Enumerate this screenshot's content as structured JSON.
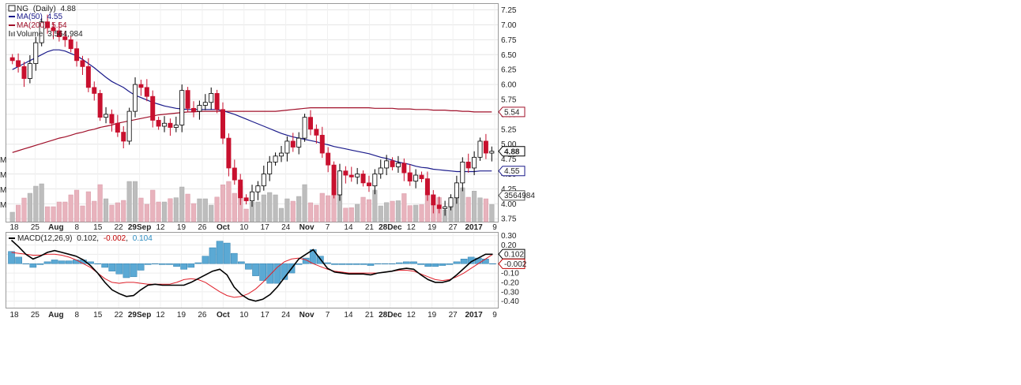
{
  "chart_data": [
    {
      "type": "candlestick",
      "legend": {
        "symbol": "NG",
        "period": "(Daily)",
        "last": "4.88",
        "ma50_label": "MA(50)",
        "ma50_value": "4.55",
        "ma200_label": "MA(200)",
        "ma200_value": "5.54",
        "volume_label": "Volume",
        "volume_value": "3,564,984"
      },
      "y_ticks": [
        "7.25",
        "7.00",
        "6.75",
        "6.50",
        "6.25",
        "6.00",
        "5.75",
        "5.50",
        "5.25",
        "5.00",
        "4.75",
        "4.50",
        "4.25",
        "4.00",
        "3.75"
      ],
      "ylim": [
        3.7,
        7.35
      ],
      "price_tags": [
        {
          "text": "5.54",
          "value": 5.54,
          "color": "#a0102a",
          "bold": false
        },
        {
          "text": "4.88",
          "value": 4.88,
          "color": "#000000",
          "bold": true
        },
        {
          "text": "4.55",
          "value": 4.55,
          "color": "#1a1a8a",
          "bold": false
        }
      ],
      "volume_tag": "3564984",
      "left_axis_labels": [
        "M",
        "M",
        "M",
        "M"
      ],
      "x_labels": [
        {
          "text": "18",
          "bold": false
        },
        {
          "text": "25",
          "bold": false
        },
        {
          "text": "Aug",
          "bold": true
        },
        {
          "text": "8",
          "bold": false
        },
        {
          "text": "15",
          "bold": false
        },
        {
          "text": "22",
          "bold": false
        },
        {
          "text": "29Sep",
          "bold": true
        },
        {
          "text": "12",
          "bold": false
        },
        {
          "text": "19",
          "bold": false
        },
        {
          "text": "26",
          "bold": false
        },
        {
          "text": "Oct",
          "bold": true
        },
        {
          "text": "10",
          "bold": false
        },
        {
          "text": "17",
          "bold": false
        },
        {
          "text": "24",
          "bold": false
        },
        {
          "text": "Nov",
          "bold": true
        },
        {
          "text": "7",
          "bold": false
        },
        {
          "text": "14",
          "bold": false
        },
        {
          "text": "21",
          "bold": false
        },
        {
          "text": "28Dec",
          "bold": true
        },
        {
          "text": "12",
          "bold": false
        },
        {
          "text": "19",
          "bold": false
        },
        {
          "text": "27",
          "bold": false
        },
        {
          "text": "2017",
          "bold": true
        },
        {
          "text": "9",
          "bold": false
        }
      ],
      "closes": [
        6.4,
        6.3,
        6.1,
        6.35,
        6.7,
        7.05,
        6.95,
        6.9,
        6.8,
        6.75,
        6.6,
        6.4,
        6.3,
        5.95,
        5.85,
        5.45,
        5.5,
        5.35,
        5.2,
        5.05,
        5.55,
        6.0,
        5.95,
        5.8,
        5.4,
        5.3,
        5.35,
        5.28,
        5.32,
        5.9,
        5.6,
        5.55,
        5.65,
        5.7,
        5.85,
        5.58,
        5.1,
        4.6,
        4.4,
        4.1,
        4.05,
        4.2,
        4.3,
        4.5,
        4.7,
        4.8,
        4.85,
        5.05,
        4.95,
        5.1,
        5.45,
        5.25,
        5.15,
        4.85,
        4.65,
        4.15,
        4.55,
        4.48,
        4.45,
        4.5,
        4.35,
        4.3,
        4.5,
        4.6,
        4.72,
        4.62,
        4.68,
        4.52,
        4.38,
        4.48,
        4.42,
        4.15,
        3.98,
        3.92,
        3.95,
        4.1,
        4.35,
        4.7,
        4.6,
        4.78,
        5.05,
        4.85,
        4.88
      ],
      "ma50": [
        6.25,
        6.3,
        6.35,
        6.4,
        6.45,
        6.5,
        6.55,
        6.58,
        6.58,
        6.56,
        6.52,
        6.48,
        6.42,
        6.35,
        6.28,
        6.2,
        6.12,
        6.05,
        6.0,
        5.95,
        5.88,
        5.82,
        5.78,
        5.74,
        5.7,
        5.67,
        5.64,
        5.62,
        5.6,
        5.59,
        5.58,
        5.58,
        5.58,
        5.58,
        5.58,
        5.58,
        5.56,
        5.53,
        5.5,
        5.46,
        5.42,
        5.38,
        5.34,
        5.3,
        5.26,
        5.22,
        5.18,
        5.15,
        5.12,
        5.1,
        5.08,
        5.06,
        5.04,
        5.01,
        4.99,
        4.96,
        4.94,
        4.92,
        4.9,
        4.88,
        4.86,
        4.84,
        4.81,
        4.78,
        4.76,
        4.73,
        4.7,
        4.68,
        4.66,
        4.63,
        4.61,
        4.6,
        4.58,
        4.57,
        4.56,
        4.55,
        4.54,
        4.54,
        4.54,
        4.54,
        4.55,
        4.55,
        4.55
      ],
      "ma200": [
        4.86,
        4.89,
        4.92,
        4.95,
        4.98,
        5.01,
        5.04,
        5.07,
        5.1,
        5.12,
        5.15,
        5.18,
        5.2,
        5.23,
        5.25,
        5.28,
        5.3,
        5.32,
        5.35,
        5.37,
        5.39,
        5.41,
        5.43,
        5.45,
        5.47,
        5.49,
        5.5,
        5.51,
        5.52,
        5.53,
        5.54,
        5.54,
        5.55,
        5.55,
        5.55,
        5.55,
        5.55,
        5.55,
        5.55,
        5.55,
        5.55,
        5.55,
        5.55,
        5.55,
        5.55,
        5.55,
        5.56,
        5.57,
        5.58,
        5.59,
        5.6,
        5.61,
        5.61,
        5.61,
        5.61,
        5.61,
        5.61,
        5.61,
        5.61,
        5.61,
        5.61,
        5.61,
        5.6,
        5.6,
        5.6,
        5.6,
        5.59,
        5.59,
        5.59,
        5.58,
        5.58,
        5.58,
        5.57,
        5.57,
        5.57,
        5.56,
        5.56,
        5.55,
        5.55,
        5.54,
        5.54,
        5.54,
        5.54
      ],
      "volume_max_label": "3564984"
    },
    {
      "type": "macd",
      "legend": {
        "label": "MACD(12,26,9)",
        "macd": "0.102",
        "hist": "-0.002",
        "signal": "0.104"
      },
      "y_ticks": [
        "0.30",
        "0.20",
        "0.10",
        "0.00",
        "-0.10",
        "-0.20",
        "-0.30",
        "-0.40"
      ],
      "ylim": [
        -0.47,
        0.33
      ],
      "tags": [
        {
          "text": "0.102",
          "value": 0.102,
          "color": "#000000"
        },
        {
          "text": "-0.002",
          "value": -0.002,
          "color": "#c00000"
        }
      ],
      "macd": [
        0.25,
        0.18,
        0.1,
        0.05,
        0.08,
        0.12,
        0.14,
        0.12,
        0.1,
        0.08,
        0.04,
        -0.02,
        -0.1,
        -0.2,
        -0.28,
        -0.32,
        -0.35,
        -0.34,
        -0.28,
        -0.23,
        -0.22,
        -0.23,
        -0.23,
        -0.23,
        -0.23,
        -0.2,
        -0.16,
        -0.12,
        -0.08,
        -0.06,
        -0.12,
        -0.25,
        -0.33,
        -0.38,
        -0.4,
        -0.38,
        -0.33,
        -0.25,
        -0.15,
        -0.05,
        0.05,
        0.1,
        0.15,
        0.05,
        -0.05,
        -0.09,
        -0.1,
        -0.11,
        -0.11,
        -0.11,
        -0.12,
        -0.1,
        -0.09,
        -0.08,
        -0.06,
        -0.05,
        -0.06,
        -0.12,
        -0.17,
        -0.2,
        -0.2,
        -0.18,
        -0.12,
        -0.05,
        0.02,
        0.06,
        0.1,
        0.1
      ],
      "signal": [
        0.12,
        0.11,
        0.1,
        0.09,
        0.09,
        0.1,
        0.1,
        0.09,
        0.07,
        0.04,
        0.0,
        -0.04,
        -0.1,
        -0.16,
        -0.2,
        -0.21,
        -0.2,
        -0.2,
        -0.21,
        -0.22,
        -0.22,
        -0.22,
        -0.22,
        -0.2,
        -0.17,
        -0.16,
        -0.17,
        -0.2,
        -0.25,
        -0.3,
        -0.34,
        -0.36,
        -0.35,
        -0.32,
        -0.27,
        -0.2,
        -0.12,
        -0.04,
        0.02,
        0.05,
        0.06,
        0.04,
        0.0,
        -0.03,
        -0.06,
        -0.08,
        -0.09,
        -0.1,
        -0.1,
        -0.1,
        -0.1,
        -0.1,
        -0.09,
        -0.08,
        -0.07,
        -0.07,
        -0.08,
        -0.11,
        -0.14,
        -0.17,
        -0.18,
        -0.17,
        -0.14,
        -0.1,
        -0.05,
        0.0,
        0.05,
        0.1
      ]
    }
  ]
}
